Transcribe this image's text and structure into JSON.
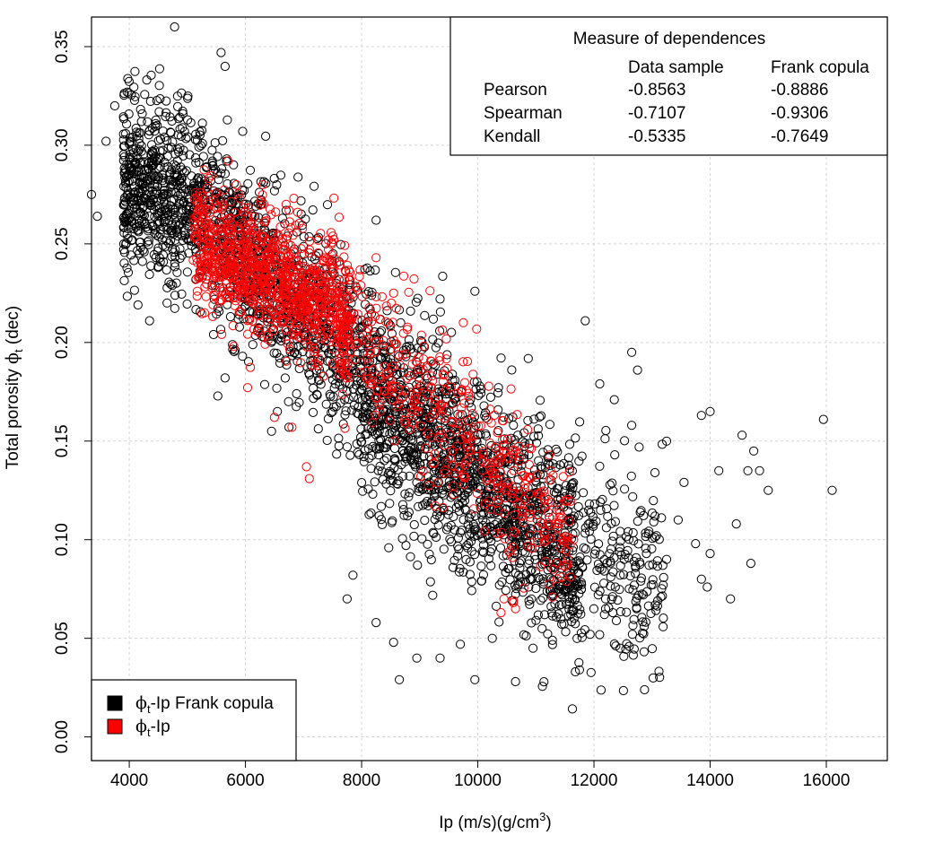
{
  "chart_data": {
    "type": "scatter",
    "xlabel": "Ip (m/s)(g/cm",
    "xlabel_sup": "3",
    "xlabel_close": ")",
    "ylabel_prefix": "Total porosity ",
    "ylabel_symbol": "ϕ",
    "ylabel_sub": "t",
    "ylabel_suffix": " (dec)",
    "xlim": [
      3350,
      17050
    ],
    "ylim": [
      -0.012,
      0.365
    ],
    "xticks": [
      4000,
      6000,
      8000,
      10000,
      12000,
      14000,
      16000
    ],
    "xtick_labels": [
      "4000",
      "6000",
      "8000",
      "10000",
      "12000",
      "14000",
      "16000"
    ],
    "yticks": [
      0.0,
      0.05,
      0.1,
      0.15,
      0.2,
      0.25,
      0.3,
      0.35
    ],
    "ytick_labels": [
      "0.00",
      "0.05",
      "0.10",
      "0.15",
      "0.20",
      "0.25",
      "0.30",
      "0.35"
    ],
    "grid": true,
    "series": [
      {
        "name_symbol": "ϕ",
        "name_sub": "t",
        "name_rest": "-Ip Frank copula",
        "color": "#000000",
        "marker": "open-circle",
        "description": "simulated sample, dense band from (4500, 0.28) to (11500, 0.10)",
        "points": [
          [
            4780,
            0.36
          ],
          [
            5580,
            0.347
          ],
          [
            5650,
            0.34
          ],
          [
            3350,
            0.275
          ],
          [
            3450,
            0.264
          ],
          [
            3750,
            0.32
          ],
          [
            3600,
            0.302
          ],
          [
            4150,
            0.219
          ],
          [
            4350,
            0.211
          ],
          [
            4650,
            0.22
          ],
          [
            5450,
            0.204
          ],
          [
            5650,
            0.182
          ],
          [
            5950,
            0.193
          ],
          [
            6450,
            0.155
          ],
          [
            6550,
            0.165
          ],
          [
            6750,
            0.157
          ],
          [
            7750,
            0.07
          ],
          [
            7850,
            0.082
          ],
          [
            8250,
            0.058
          ],
          [
            8550,
            0.048
          ],
          [
            8650,
            0.029
          ],
          [
            8950,
            0.04
          ],
          [
            9350,
            0.04
          ],
          [
            9700,
            0.047
          ],
          [
            9950,
            0.029
          ],
          [
            10250,
            0.05
          ],
          [
            10650,
            0.028
          ],
          [
            10950,
            0.045
          ],
          [
            11150,
            0.062
          ],
          [
            11450,
            0.072
          ],
          [
            11750,
            0.034
          ],
          [
            12450,
            0.045
          ],
          [
            12850,
            0.072
          ],
          [
            13250,
            0.09
          ],
          [
            13550,
            0.129
          ],
          [
            13750,
            0.098
          ],
          [
            13850,
            0.08
          ],
          [
            13950,
            0.076
          ],
          [
            14000,
            0.093
          ],
          [
            14000,
            0.165
          ],
          [
            14150,
            0.135
          ],
          [
            14350,
            0.07
          ],
          [
            14450,
            0.108
          ],
          [
            14550,
            0.153
          ],
          [
            14650,
            0.135
          ],
          [
            14700,
            0.088
          ],
          [
            14750,
            0.145
          ],
          [
            14850,
            0.135
          ],
          [
            15000,
            0.125
          ],
          [
            15950,
            0.161
          ],
          [
            16100,
            0.125
          ],
          [
            12650,
            0.195
          ],
          [
            12750,
            0.186
          ],
          [
            11850,
            0.211
          ],
          [
            8250,
            0.262
          ],
          [
            9350,
            0.222
          ],
          [
            9950,
            0.226
          ],
          [
            13850,
            0.163
          ],
          [
            13250,
            0.15
          ],
          [
            12100,
            0.179
          ],
          [
            12350,
            0.171
          ],
          [
            12650,
            0.158
          ],
          [
            13050,
            0.134
          ],
          [
            13450,
            0.11
          ],
          [
            12950,
            0.087
          ],
          [
            12200,
            0.065
          ]
        ]
      },
      {
        "name_symbol": "ϕ",
        "name_sub": "t",
        "name_rest": "-Ip",
        "color": "#ff0000",
        "marker": "open-circle",
        "description": "data sample, dense band from (5000, 0.26) to (11500, 0.09)",
        "points": [
          [
            5700,
            0.292
          ],
          [
            6300,
            0.28
          ],
          [
            6700,
            0.27
          ],
          [
            6500,
            0.162
          ],
          [
            6800,
            0.157
          ],
          [
            7050,
            0.137
          ],
          [
            7100,
            0.131
          ],
          [
            5800,
            0.198
          ],
          [
            6900,
            0.266
          ],
          [
            8550,
            0.225
          ],
          [
            8250,
            0.243
          ],
          [
            9750,
            0.21
          ],
          [
            10450,
            0.07
          ],
          [
            10650,
            0.065
          ],
          [
            10400,
            0.063
          ],
          [
            11450,
            0.1
          ],
          [
            11650,
            0.1
          ],
          [
            11550,
            0.09
          ],
          [
            11300,
            0.085
          ],
          [
            10150,
            0.13
          ],
          [
            9550,
            0.16
          ]
        ]
      }
    ],
    "table": {
      "title": "Measure of dependences",
      "columns": [
        "",
        "Data sample",
        "Frank copula"
      ],
      "rows": [
        {
          "measure": "Pearson",
          "data_sample": "-0.8563",
          "frank_copula": "-0.8886"
        },
        {
          "measure": "Spearman",
          "data_sample": "-0.7107",
          "frank_copula": "-0.9306"
        },
        {
          "measure": "Kendall",
          "data_sample": "-0.5335",
          "frank_copula": "-0.7649"
        }
      ]
    },
    "legend_position": "bottom-left",
    "table_position": "top-right"
  }
}
